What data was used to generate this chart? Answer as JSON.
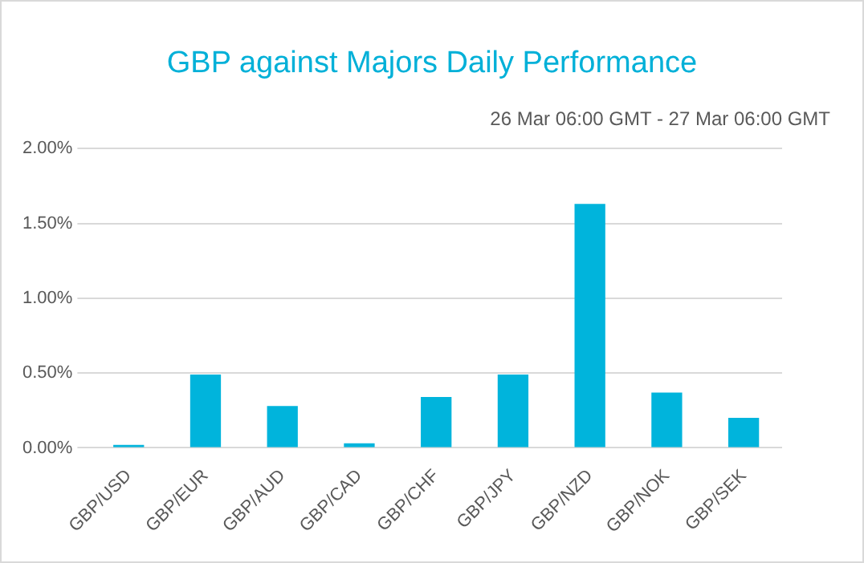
{
  "chart_data": {
    "type": "bar",
    "title": "GBP against Majors Daily Performance",
    "subtitle": "26 Mar 06:00 GMT - 27 Mar 06:00 GMT",
    "categories": [
      "GBP/USD",
      "GBP/EUR",
      "GBP/AUD",
      "GBP/CAD",
      "GBP/CHF",
      "GBP/JPY",
      "GBP/NZD",
      "GBP/NOK",
      "GBP/SEK"
    ],
    "values": [
      0.02,
      0.49,
      0.28,
      0.03,
      0.34,
      0.49,
      1.63,
      0.37,
      0.2
    ],
    "color": "#00b4dc",
    "ylim": [
      0,
      2
    ],
    "yticks": [
      {
        "value": 0,
        "label": "0.00%"
      },
      {
        "value": 0.5,
        "label": "0.50%"
      },
      {
        "value": 1,
        "label": "1.00%"
      },
      {
        "value": 1.5,
        "label": "1.50%"
      },
      {
        "value": 2,
        "label": "2.00%"
      }
    ],
    "grid": "y",
    "legend": false
  }
}
